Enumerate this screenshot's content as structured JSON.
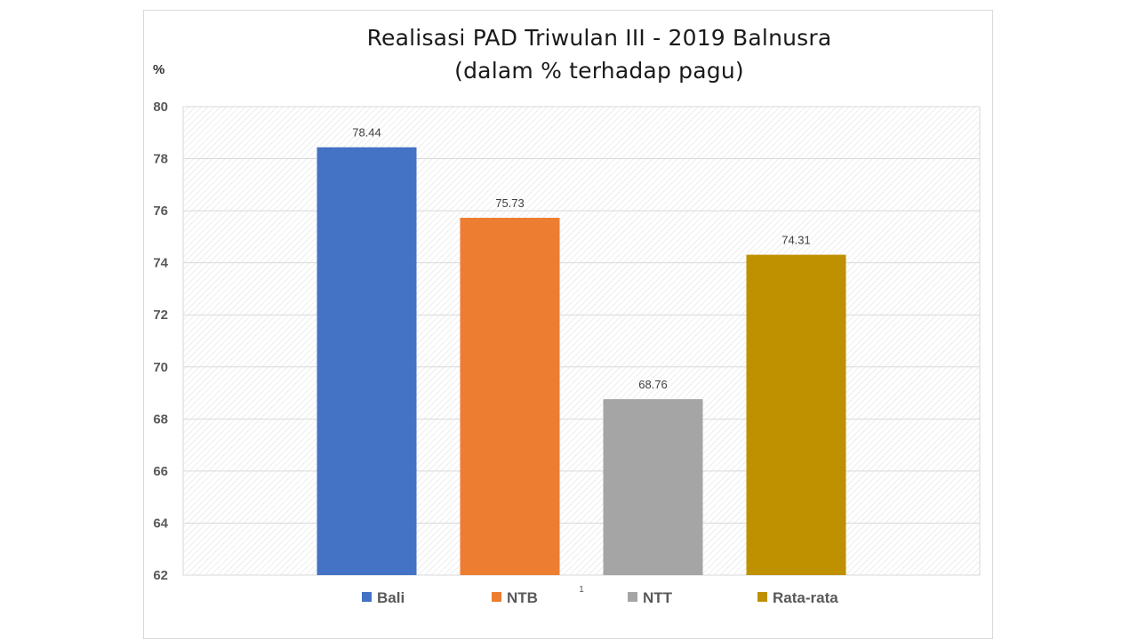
{
  "chart_data": {
    "type": "bar",
    "title": "Realisasi PAD Triwulan III - 2019 Balnusra",
    "subtitle": "(dalam % terhadap pagu)",
    "ylabel": "%",
    "categories": [
      "1"
    ],
    "ylim": [
      62,
      80
    ],
    "yticks": [
      62,
      64,
      66,
      68,
      70,
      72,
      74,
      76,
      78,
      80
    ],
    "grid": true,
    "legend_position": "bottom",
    "series": [
      {
        "name": "Bali",
        "values": [
          78.44
        ],
        "color": "#4472c4",
        "label": "78.44"
      },
      {
        "name": "NTB",
        "values": [
          75.73
        ],
        "color": "#ed7d31",
        "label": "75.73"
      },
      {
        "name": "NTT",
        "values": [
          68.76
        ],
        "color": "#a5a5a5",
        "label": "68.76"
      },
      {
        "name": "Rata-rata",
        "values": [
          74.31
        ],
        "color": "#bf9000",
        "label": "74.31"
      }
    ]
  }
}
